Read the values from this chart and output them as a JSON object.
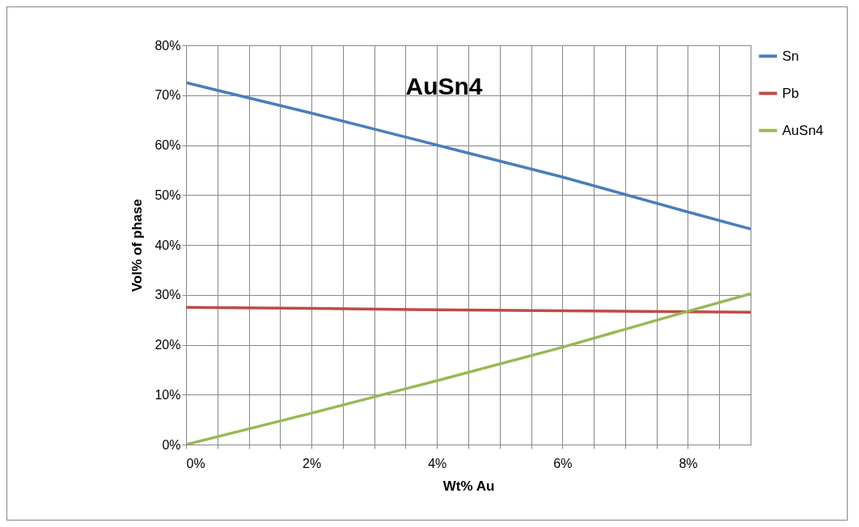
{
  "chart_data": {
    "type": "line",
    "title": "AuSn4",
    "xlabel": "Wt% Au",
    "ylabel": "Vol% of phase",
    "x": [
      0,
      2,
      4,
      6,
      8,
      9
    ],
    "series": [
      {
        "name": "Sn",
        "color": "#4a7ebb",
        "values": [
          72.5,
          66.4,
          60,
          53.6,
          46.6,
          43.2
        ]
      },
      {
        "name": "Pb",
        "color": "#be4b48",
        "values": [
          27.5,
          27.3,
          27,
          26.8,
          26.6,
          26.5
        ]
      },
      {
        "name": "AuSn4",
        "color": "#98b954",
        "values": [
          0,
          6.3,
          12.8,
          19.5,
          26.7,
          30.2
        ]
      }
    ],
    "xlim": [
      0,
      9
    ],
    "xticks": [
      {
        "value": 0,
        "label": "0%"
      },
      {
        "value": 0.5,
        "label": null
      },
      {
        "value": 1,
        "label": null
      },
      {
        "value": 1.5,
        "label": null
      },
      {
        "value": 2,
        "label": "2%"
      },
      {
        "value": 2.5,
        "label": null
      },
      {
        "value": 3,
        "label": null
      },
      {
        "value": 3.5,
        "label": null
      },
      {
        "value": 4,
        "label": "4%"
      },
      {
        "value": 4.5,
        "label": null
      },
      {
        "value": 5,
        "label": null
      },
      {
        "value": 5.5,
        "label": null
      },
      {
        "value": 6,
        "label": "6%"
      },
      {
        "value": 6.5,
        "label": null
      },
      {
        "value": 7,
        "label": null
      },
      {
        "value": 7.5,
        "label": null
      },
      {
        "value": 8,
        "label": "8%"
      },
      {
        "value": 8.5,
        "label": null
      }
    ],
    "ylim": [
      0,
      80
    ],
    "yticks": [
      {
        "value": 0,
        "label": "0%"
      },
      {
        "value": 10,
        "label": "10%"
      },
      {
        "value": 20,
        "label": "20%"
      },
      {
        "value": 30,
        "label": "30%"
      },
      {
        "value": 40,
        "label": "40%"
      },
      {
        "value": 50,
        "label": "50%"
      },
      {
        "value": 60,
        "label": "60%"
      },
      {
        "value": 70,
        "label": "70%"
      },
      {
        "value": 80,
        "label": "80%"
      }
    ],
    "grid": true,
    "legend": "right",
    "marker": "none",
    "line_style": "solid"
  }
}
